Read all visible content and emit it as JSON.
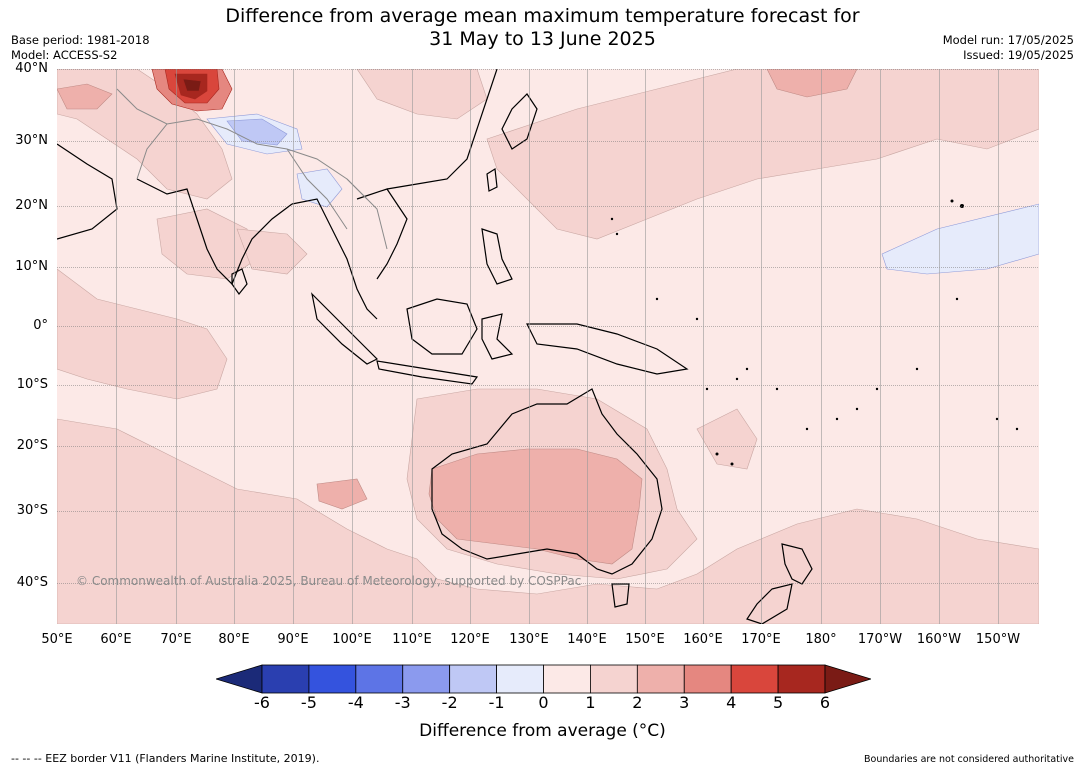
{
  "title": {
    "line1": "Difference from average mean maximum temperature forecast for",
    "line2": "31 May to 13 June 2025"
  },
  "meta_left": {
    "base_period": "Base period: 1981-2018",
    "model": "Model: ACCESS-S2"
  },
  "meta_right": {
    "model_run": "Model run: 17/05/2025",
    "issued": "Issued: 19/05/2025"
  },
  "lat_labels": [
    "40°N",
    "30°N",
    "20°N",
    "10°N",
    "0°",
    "10°S",
    "20°S",
    "30°S",
    "40°S"
  ],
  "lon_labels": [
    "50°E",
    "60°E",
    "70°E",
    "80°E",
    "90°E",
    "100°E",
    "110°E",
    "120°E",
    "130°E",
    "140°E",
    "150°E",
    "160°E",
    "170°E",
    "180°",
    "170°W",
    "160°W",
    "150°W"
  ],
  "colorbar": {
    "ticks": [
      "-6",
      "-5",
      "-4",
      "-3",
      "-2",
      "-1",
      "0",
      "1",
      "2",
      "3",
      "4",
      "5",
      "6"
    ],
    "colors": [
      "#1b2a78",
      "#2a3fb0",
      "#3453de",
      "#5d74e6",
      "#8b9aee",
      "#bfc8f5",
      "#e6ebfb",
      "#fce9e7",
      "#f5d3d0",
      "#eeb0ab",
      "#e58780",
      "#d9463c",
      "#a7271f",
      "#7a1b15"
    ],
    "label": "Difference from average (°C)"
  },
  "copyright": "© Commonwealth of Australia 2025, Bureau of Meteorology, supported by COSPPac",
  "footer": {
    "eez": "--  --  -- EEZ border V11 (Flanders Marine Institute, 2019).",
    "boundaries": "Boundaries are not considered authoritative"
  }
}
